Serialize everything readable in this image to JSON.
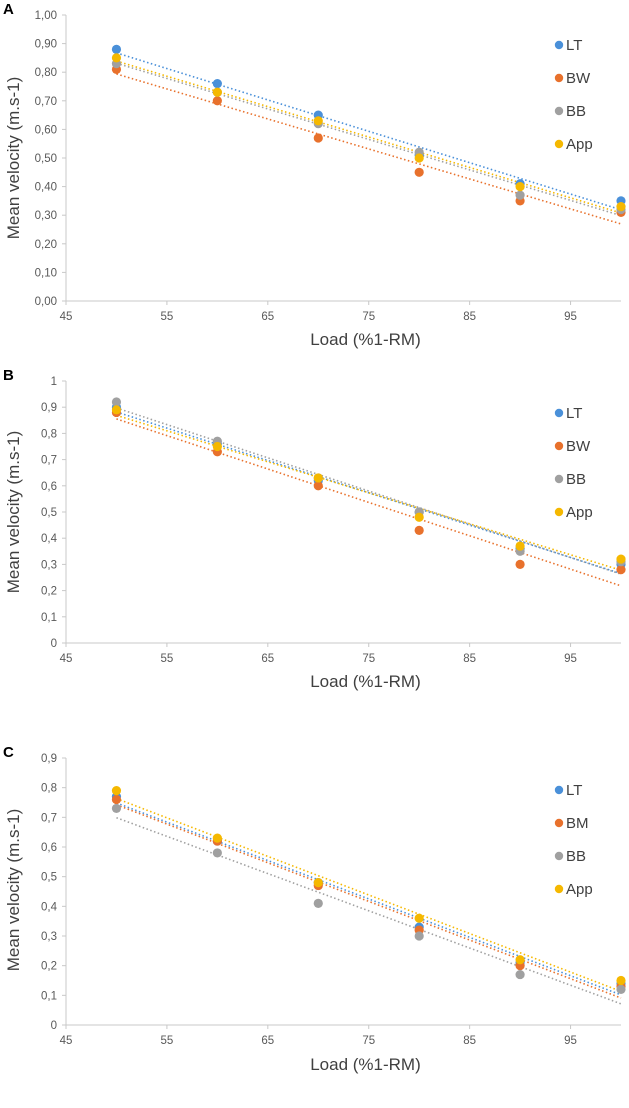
{
  "chart_data": [
    {
      "panel_label": "A",
      "type": "scatter",
      "xlabel": "Load (%1-RM)",
      "ylabel": "Mean velocity (m.s-1)",
      "xlim": [
        45,
        100
      ],
      "ylim": [
        0,
        1.0
      ],
      "x_ticks": [
        45,
        55,
        65,
        75,
        85,
        95
      ],
      "x_tick_labels": [
        "45",
        "55",
        "65",
        "75",
        "85",
        "95"
      ],
      "y_ticks": [
        0,
        0.1,
        0.2,
        0.3,
        0.4,
        0.5,
        0.6,
        0.7,
        0.8,
        0.9,
        1.0
      ],
      "y_tick_labels": [
        "0,00",
        "0,10",
        "0,20",
        "0,30",
        "0,40",
        "0,50",
        "0,60",
        "0,70",
        "0,80",
        "0,90",
        "1,00"
      ],
      "legend_position": "right",
      "trendline": "linear, dotted",
      "series": [
        {
          "name": "LT",
          "color": "#4a90d9",
          "x": [
            50,
            60,
            70,
            80,
            90,
            100
          ],
          "y": [
            0.88,
            0.76,
            0.65,
            0.51,
            0.41,
            0.35
          ]
        },
        {
          "name": "BW",
          "color": "#e8712c",
          "x": [
            50,
            60,
            70,
            80,
            90,
            100
          ],
          "y": [
            0.81,
            0.7,
            0.57,
            0.45,
            0.35,
            0.31
          ]
        },
        {
          "name": "BB",
          "color": "#a0a0a0",
          "x": [
            50,
            60,
            70,
            80,
            90,
            100
          ],
          "y": [
            0.83,
            0.73,
            0.62,
            0.52,
            0.37,
            0.32
          ]
        },
        {
          "name": "App",
          "color": "#f5b800",
          "x": [
            50,
            60,
            70,
            80,
            90,
            100
          ],
          "y": [
            0.85,
            0.73,
            0.63,
            0.5,
            0.4,
            0.33
          ]
        }
      ]
    },
    {
      "panel_label": "B",
      "type": "scatter",
      "xlabel": "Load (%1-RM)",
      "ylabel": "Mean velocity (m.s-1)",
      "xlim": [
        45,
        100
      ],
      "ylim": [
        0,
        1.0
      ],
      "x_ticks": [
        45,
        55,
        65,
        75,
        85,
        95
      ],
      "x_tick_labels": [
        "45",
        "55",
        "65",
        "75",
        "85",
        "95"
      ],
      "y_ticks": [
        0,
        0.1,
        0.2,
        0.3,
        0.4,
        0.5,
        0.6,
        0.7,
        0.8,
        0.9,
        1.0
      ],
      "y_tick_labels": [
        "0",
        "0,1",
        "0,2",
        "0,3",
        "0,4",
        "0,5",
        "0,6",
        "0,7",
        "0,8",
        "0,9",
        "1"
      ],
      "legend_position": "right",
      "trendline": "linear, dotted",
      "series": [
        {
          "name": "LT",
          "color": "#4a90d9",
          "x": [
            50,
            60,
            70,
            80,
            90,
            100
          ],
          "y": [
            0.9,
            0.76,
            0.62,
            0.5,
            0.36,
            0.3
          ]
        },
        {
          "name": "BW",
          "color": "#e8712c",
          "x": [
            50,
            60,
            70,
            80,
            90,
            100
          ],
          "y": [
            0.88,
            0.73,
            0.6,
            0.43,
            0.3,
            0.28
          ]
        },
        {
          "name": "BB",
          "color": "#a0a0a0",
          "x": [
            50,
            60,
            70,
            80,
            90,
            100
          ],
          "y": [
            0.92,
            0.77,
            0.63,
            0.5,
            0.35,
            0.31
          ]
        },
        {
          "name": "App",
          "color": "#f5b800",
          "x": [
            50,
            60,
            70,
            80,
            90,
            100
          ],
          "y": [
            0.89,
            0.75,
            0.63,
            0.48,
            0.37,
            0.32
          ]
        }
      ]
    },
    {
      "panel_label": "C",
      "type": "scatter",
      "xlabel": "Load (%1-RM)",
      "ylabel": "Mean velocity (m.s-1)",
      "xlim": [
        45,
        100
      ],
      "ylim": [
        0,
        0.9
      ],
      "x_ticks": [
        45,
        55,
        65,
        75,
        85,
        95
      ],
      "x_tick_labels": [
        "45",
        "55",
        "65",
        "75",
        "85",
        "95"
      ],
      "y_ticks": [
        0,
        0.1,
        0.2,
        0.3,
        0.4,
        0.5,
        0.6,
        0.7,
        0.8,
        0.9
      ],
      "y_tick_labels": [
        "0",
        "0,1",
        "0,2",
        "0,3",
        "0,4",
        "0,5",
        "0,6",
        "0,7",
        "0,8",
        "0,9"
      ],
      "legend_position": "right",
      "trendline": "linear, dotted",
      "series": [
        {
          "name": "LT",
          "color": "#4a90d9",
          "x": [
            50,
            60,
            70,
            80,
            90,
            100
          ],
          "y": [
            0.77,
            0.62,
            0.48,
            0.33,
            0.21,
            0.14
          ]
        },
        {
          "name": "BM",
          "color": "#e8712c",
          "x": [
            50,
            60,
            70,
            80,
            90,
            100
          ],
          "y": [
            0.76,
            0.62,
            0.47,
            0.32,
            0.2,
            0.13
          ]
        },
        {
          "name": "BB",
          "color": "#a0a0a0",
          "x": [
            50,
            60,
            70,
            80,
            90,
            100
          ],
          "y": [
            0.73,
            0.58,
            0.41,
            0.3,
            0.17,
            0.12
          ]
        },
        {
          "name": "App",
          "color": "#f5b800",
          "x": [
            50,
            60,
            70,
            80,
            90,
            100
          ],
          "y": [
            0.79,
            0.63,
            0.48,
            0.36,
            0.22,
            0.15
          ]
        }
      ]
    }
  ]
}
